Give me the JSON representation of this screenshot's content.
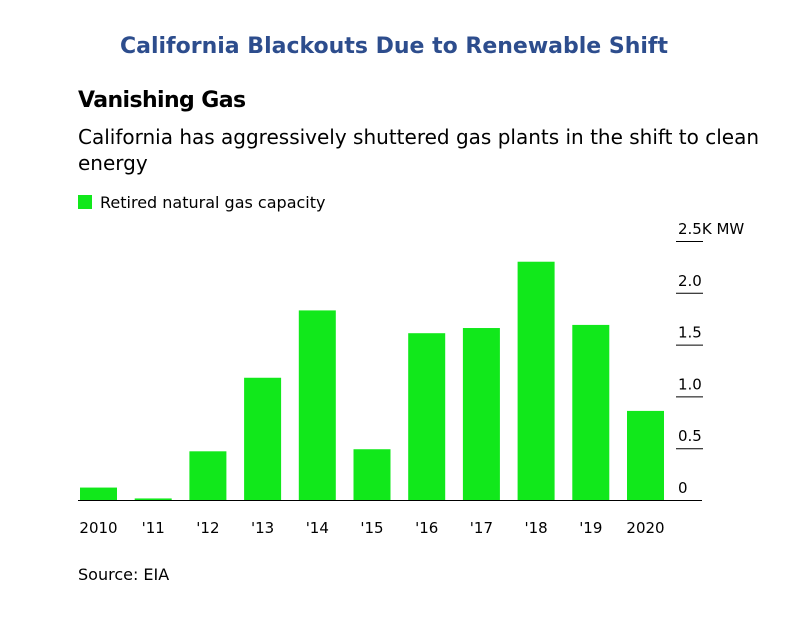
{
  "banner": "California Blackouts Due to Renewable Shift",
  "colors": {
    "banner": "#2d4d8d",
    "bar": "#11e81b",
    "axis": "#000000"
  },
  "chart_data": {
    "type": "bar",
    "title": "Vanishing Gas",
    "subtitle": "California has aggressively shuttered gas plants in the shift to clean energy",
    "categories": [
      "2010",
      "'11",
      "'12",
      "'13",
      "'14",
      "'15",
      "'16",
      "'17",
      "'18",
      "'19",
      "2020"
    ],
    "series": [
      {
        "name": "Retired natural gas capacity",
        "values": [
          120,
          15,
          470,
          1180,
          1830,
          490,
          1610,
          1660,
          2300,
          1690,
          860
        ]
      }
    ],
    "ylabel": "",
    "yunit": "MW",
    "ylim": [
      0,
      2500
    ],
    "yticks": [
      {
        "value": 0,
        "label": "0"
      },
      {
        "value": 500,
        "label": "0.5"
      },
      {
        "value": 1000,
        "label": "1.0"
      },
      {
        "value": 1500,
        "label": "1.5"
      },
      {
        "value": 2000,
        "label": "2.0"
      },
      {
        "value": 2500,
        "label": "2.5K MW"
      }
    ],
    "legend": "top-left",
    "grid": false,
    "source": "Source: EIA"
  }
}
